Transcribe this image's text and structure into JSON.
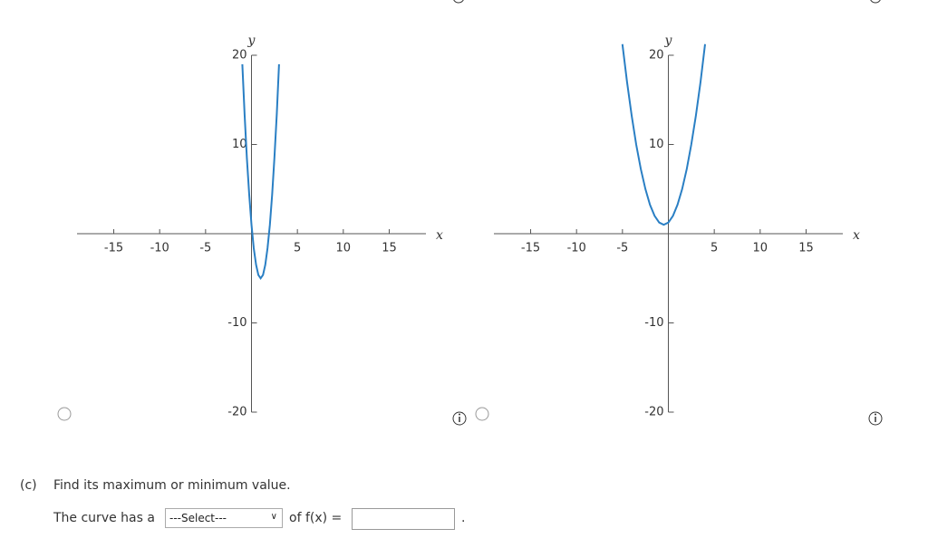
{
  "graphs": [
    {
      "type": "line",
      "x_label": "x",
      "y_label": "y",
      "color": "#2a7fc4",
      "xlim": [
        -19,
        19
      ],
      "ylim": [
        -20,
        20
      ],
      "xticks": [
        -15,
        -10,
        -5,
        5,
        10,
        15
      ],
      "yticks": [
        -20,
        -10,
        10,
        20
      ],
      "x": [
        -1,
        -0.75,
        -0.5,
        -0.25,
        0,
        0.25,
        0.5,
        0.75,
        1,
        1.25,
        1.5,
        1.75,
        2,
        2.25,
        2.5,
        2.75,
        3
      ],
      "values": [
        19,
        13.375,
        8.5,
        4.375,
        1,
        -1.625,
        -3.5,
        -4.625,
        -5,
        -4.625,
        -3.5,
        -1.625,
        1,
        4.375,
        8.5,
        13.375,
        19
      ]
    },
    {
      "type": "line",
      "x_label": "x",
      "y_label": "y",
      "color": "#2a7fc4",
      "xlim": [
        -19,
        19
      ],
      "ylim": [
        -20,
        20
      ],
      "xticks": [
        -15,
        -10,
        -5,
        5,
        10,
        15
      ],
      "yticks": [
        -20,
        -10,
        10,
        20
      ],
      "x": [
        -5,
        -4.5,
        -4,
        -3.5,
        -3,
        -2.5,
        -2,
        -1.5,
        -1,
        -0.5,
        0,
        0.5,
        1,
        1.5,
        2,
        2.5,
        3,
        3.5,
        4
      ],
      "values": [
        21.25,
        17,
        13.25,
        10,
        7.25,
        5,
        3.25,
        2,
        1.25,
        1,
        1.25,
        2,
        3.25,
        5,
        7.25,
        10,
        13.25,
        17,
        21.25
      ]
    }
  ],
  "question": {
    "part": "(c)",
    "prompt": "Find its maximum or minimum value.",
    "sentence_start": "The curve has a",
    "select_placeholder": "---Select---",
    "sentence_middle": "of f(x) =",
    "sentence_end": "."
  }
}
